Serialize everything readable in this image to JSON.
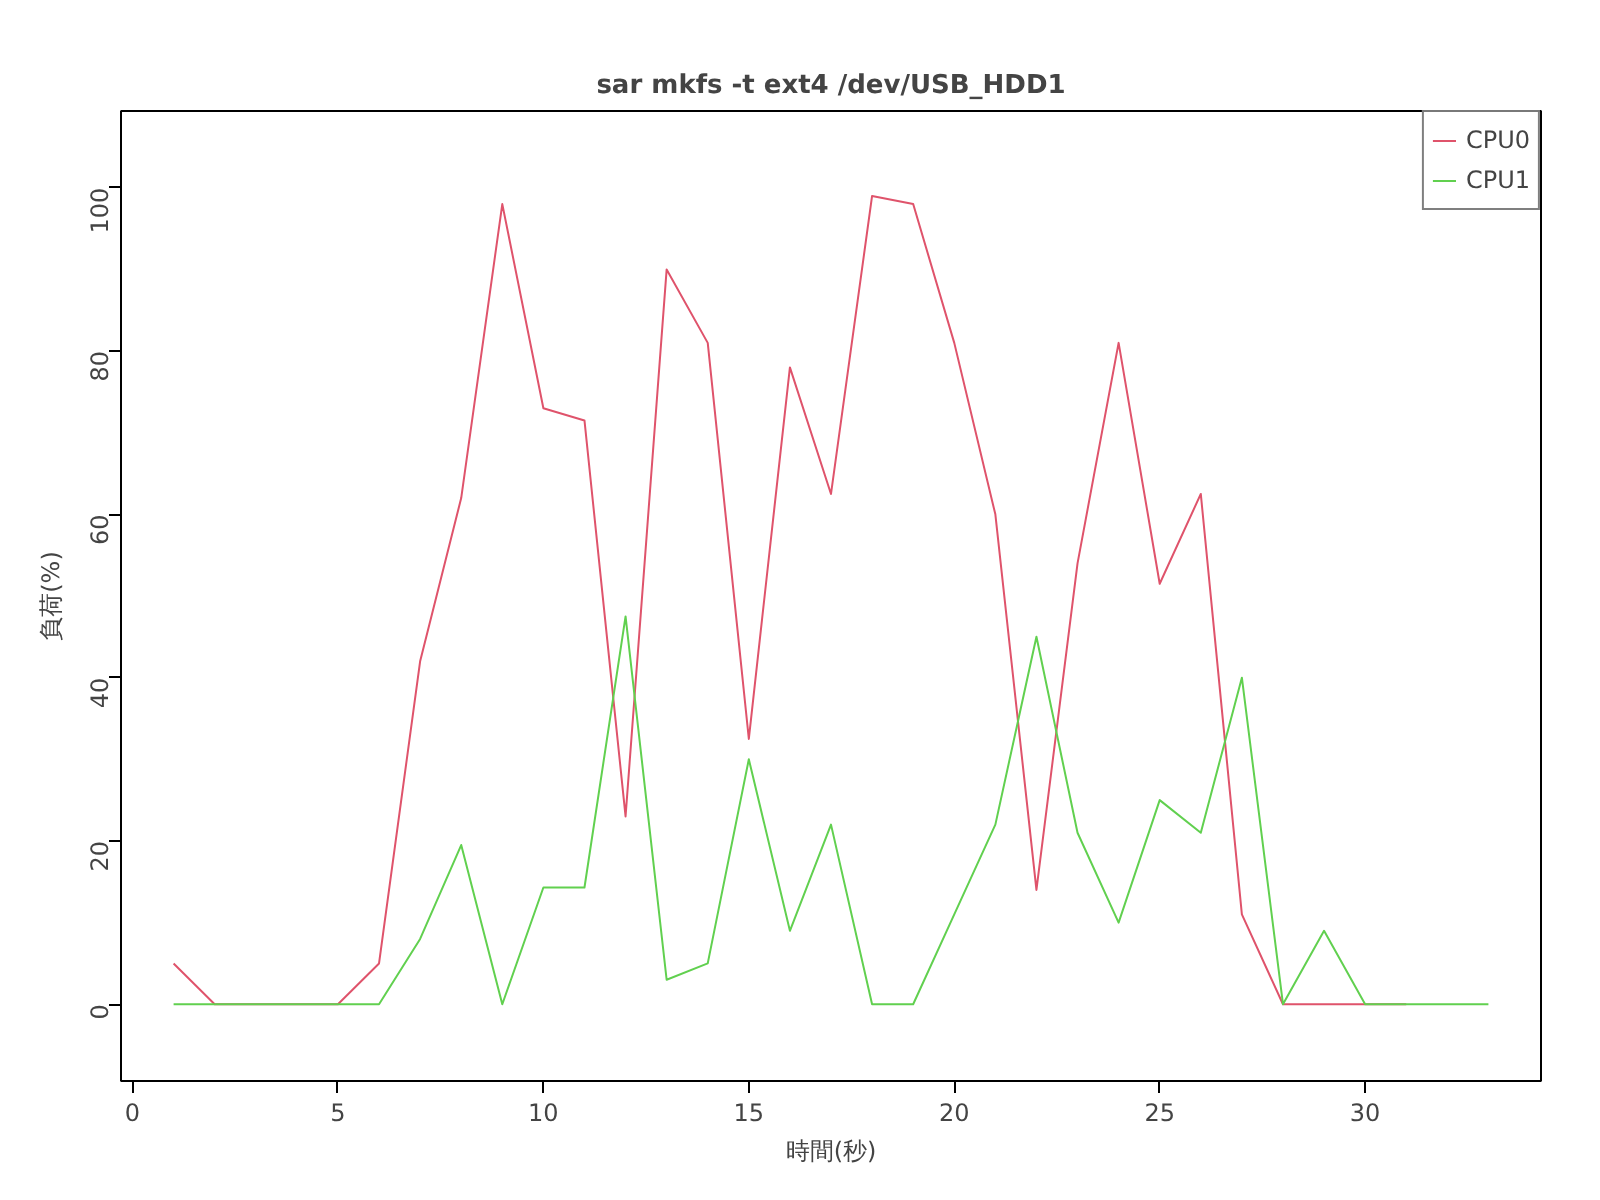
{
  "chart_data": {
    "type": "line",
    "title": "sar mkfs -t ext4 /dev/USB_HDD1",
    "xlabel": "時間(秒)",
    "ylabel": "負荷(%)",
    "x": [
      1,
      2,
      3,
      4,
      5,
      6,
      7,
      8,
      9,
      10,
      11,
      12,
      13,
      14,
      15,
      16,
      17,
      18,
      19,
      20,
      21,
      22,
      23,
      24,
      25,
      26,
      27,
      28,
      29,
      30,
      31,
      32,
      33
    ],
    "series": [
      {
        "name": "CPU0",
        "color": "#df536b",
        "values": [
          5,
          0,
          0,
          0,
          0,
          5,
          42,
          62,
          98,
          73,
          71.5,
          23,
          90,
          81,
          32.5,
          78,
          62.5,
          99,
          98,
          81,
          60,
          14,
          54,
          81,
          51.5,
          62.5,
          11,
          0,
          0,
          0,
          0,
          null,
          null
        ]
      },
      {
        "name": "CPU1",
        "color": "#61d04f",
        "values": [
          0,
          0,
          0,
          0,
          0,
          0,
          8,
          19.5,
          0,
          14.3,
          14.3,
          47.5,
          3,
          5,
          30,
          9,
          22,
          0,
          0,
          11,
          22,
          45,
          21,
          10,
          25,
          21,
          40,
          0,
          9,
          0,
          0,
          0,
          0
        ]
      }
    ],
    "xlim": [
      -0.28,
      34.28
    ],
    "ylim": [
      -9.4,
      109.4
    ],
    "xticks": [
      0,
      5,
      10,
      15,
      20,
      25,
      30
    ],
    "yticks": [
      0,
      20,
      40,
      60,
      80,
      100
    ],
    "grid": false,
    "legend": "top right",
    "line_style": "solid",
    "marker": "none"
  }
}
